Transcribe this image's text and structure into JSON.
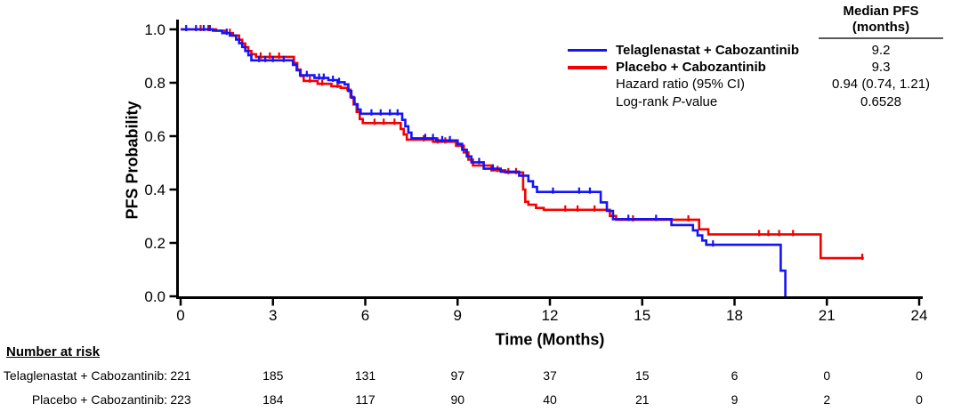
{
  "chart_data": {
    "type": "line",
    "subtype": "kaplan-meier-step",
    "title": "",
    "xlabel": "Time (Months)",
    "ylabel": "PFS Probability",
    "xlim": [
      0,
      24
    ],
    "ylim": [
      0.0,
      1.0
    ],
    "x_ticks": [
      0,
      3,
      6,
      9,
      12,
      15,
      18,
      21,
      24
    ],
    "y_ticks": [
      1.0,
      0.8,
      0.6,
      0.4,
      0.2,
      0.0
    ],
    "grid": false,
    "series": [
      {
        "name": "Placebo + Cabozantinib",
        "color": "#f50000",
        "median_pfs_months": 9.3,
        "end_month": 22.2,
        "end_censor": true,
        "steps": [
          [
            0,
            1.0
          ],
          [
            1.15,
            0.995
          ],
          [
            1.45,
            0.986
          ],
          [
            1.7,
            0.977
          ],
          [
            1.9,
            0.961
          ],
          [
            2.0,
            0.947
          ],
          [
            2.1,
            0.933
          ],
          [
            2.2,
            0.919
          ],
          [
            2.3,
            0.907
          ],
          [
            2.45,
            0.897
          ],
          [
            3.68,
            0.874
          ],
          [
            3.79,
            0.849
          ],
          [
            3.9,
            0.825
          ],
          [
            4.0,
            0.807
          ],
          [
            4.45,
            0.796
          ],
          [
            4.9,
            0.787
          ],
          [
            5.2,
            0.781
          ],
          [
            5.42,
            0.774
          ],
          [
            5.52,
            0.747
          ],
          [
            5.62,
            0.719
          ],
          [
            5.72,
            0.691
          ],
          [
            5.82,
            0.664
          ],
          [
            5.92,
            0.649
          ],
          [
            7.15,
            0.627
          ],
          [
            7.25,
            0.606
          ],
          [
            7.35,
            0.587
          ],
          [
            8.2,
            0.579
          ],
          [
            8.95,
            0.564
          ],
          [
            9.2,
            0.539
          ],
          [
            9.35,
            0.512
          ],
          [
            9.5,
            0.49
          ],
          [
            10.1,
            0.472
          ],
          [
            10.55,
            0.464
          ],
          [
            11.13,
            0.4
          ],
          [
            11.2,
            0.354
          ],
          [
            11.3,
            0.343
          ],
          [
            11.55,
            0.331
          ],
          [
            11.8,
            0.324
          ],
          [
            13.95,
            0.301
          ],
          [
            14.15,
            0.287
          ],
          [
            16.85,
            0.251
          ],
          [
            17.15,
            0.232
          ],
          [
            20.8,
            0.143
          ]
        ],
        "censor_months": [
          0.65,
          0.9,
          1.6,
          2.6,
          2.9,
          3.2,
          4.2,
          4.6,
          5.1,
          6.3,
          6.6,
          6.95,
          7.9,
          8.35,
          8.6,
          10.3,
          10.65,
          10.9,
          12.5,
          12.9,
          13.45,
          14.7,
          16.5,
          18.8,
          19.1,
          19.45,
          19.9,
          22.15
        ]
      },
      {
        "name": "Telaglenastat + Cabozantinib",
        "color": "#1414f5",
        "median_pfs_months": 9.2,
        "end_month": 19.65,
        "end_censor": false,
        "steps": [
          [
            0,
            1.0
          ],
          [
            1.05,
            0.995
          ],
          [
            1.35,
            0.986
          ],
          [
            1.6,
            0.977
          ],
          [
            1.8,
            0.962
          ],
          [
            1.9,
            0.948
          ],
          [
            2.0,
            0.934
          ],
          [
            2.1,
            0.919
          ],
          [
            2.2,
            0.903
          ],
          [
            2.3,
            0.884
          ],
          [
            3.65,
            0.867
          ],
          [
            3.77,
            0.847
          ],
          [
            3.88,
            0.828
          ],
          [
            4.35,
            0.818
          ],
          [
            4.8,
            0.81
          ],
          [
            5.1,
            0.802
          ],
          [
            5.33,
            0.794
          ],
          [
            5.45,
            0.769
          ],
          [
            5.55,
            0.744
          ],
          [
            5.65,
            0.72
          ],
          [
            5.75,
            0.7
          ],
          [
            5.85,
            0.684
          ],
          [
            7.2,
            0.661
          ],
          [
            7.3,
            0.637
          ],
          [
            7.4,
            0.613
          ],
          [
            7.5,
            0.592
          ],
          [
            8.3,
            0.584
          ],
          [
            9.0,
            0.571
          ],
          [
            9.15,
            0.549
          ],
          [
            9.3,
            0.524
          ],
          [
            9.45,
            0.502
          ],
          [
            9.85,
            0.478
          ],
          [
            10.4,
            0.467
          ],
          [
            11.0,
            0.452
          ],
          [
            11.3,
            0.431
          ],
          [
            11.45,
            0.41
          ],
          [
            11.58,
            0.391
          ],
          [
            13.65,
            0.352
          ],
          [
            13.85,
            0.32
          ],
          [
            14.05,
            0.289
          ],
          [
            15.95,
            0.267
          ],
          [
            16.65,
            0.247
          ],
          [
            16.8,
            0.228
          ],
          [
            16.95,
            0.209
          ],
          [
            17.08,
            0.193
          ],
          [
            19.5,
            0.096
          ],
          [
            19.65,
            0.0
          ]
        ],
        "censor_months": [
          0.18,
          0.5,
          0.75,
          0.95,
          1.5,
          2.55,
          2.75,
          3.0,
          3.35,
          4.1,
          4.5,
          4.65,
          4.95,
          5.15,
          6.2,
          6.5,
          6.8,
          7.05,
          7.95,
          8.2,
          8.5,
          8.75,
          9.7,
          10.15,
          12.1,
          12.95,
          13.3,
          14.55,
          15.45,
          17.3
        ]
      }
    ]
  },
  "legend": {
    "header_line1": "Median PFS",
    "header_line2": "(months)",
    "rows": [
      {
        "parts": [
          "Telaglenastat + Cabozantinib",
          "",
          ""
        ],
        "value": "9.2",
        "swatch": "#1414f5"
      },
      {
        "parts": [
          "Placebo + Cabozantinib",
          "",
          ""
        ],
        "value": "9.3",
        "swatch": "#f50000"
      },
      {
        "parts": [
          "Hazard ratio (95% CI)",
          "",
          ""
        ],
        "value": "0.94 (0.74, 1.21)",
        "swatch": ""
      },
      {
        "parts": [
          "Log-rank ",
          "P",
          "-value"
        ],
        "value": "0.6528",
        "swatch": ""
      }
    ]
  },
  "at_risk": {
    "header": "Number at risk",
    "time_points": [
      0,
      3,
      6,
      9,
      12,
      15,
      18,
      21,
      24
    ],
    "rows": [
      {
        "label": "Telaglenastat + Cabozantinib:",
        "counts": [
          221,
          185,
          131,
          97,
          37,
          15,
          6,
          0,
          0
        ]
      },
      {
        "label": "Placebo + Cabozantinib:",
        "counts": [
          223,
          184,
          117,
          90,
          40,
          21,
          9,
          2,
          0
        ]
      }
    ]
  }
}
